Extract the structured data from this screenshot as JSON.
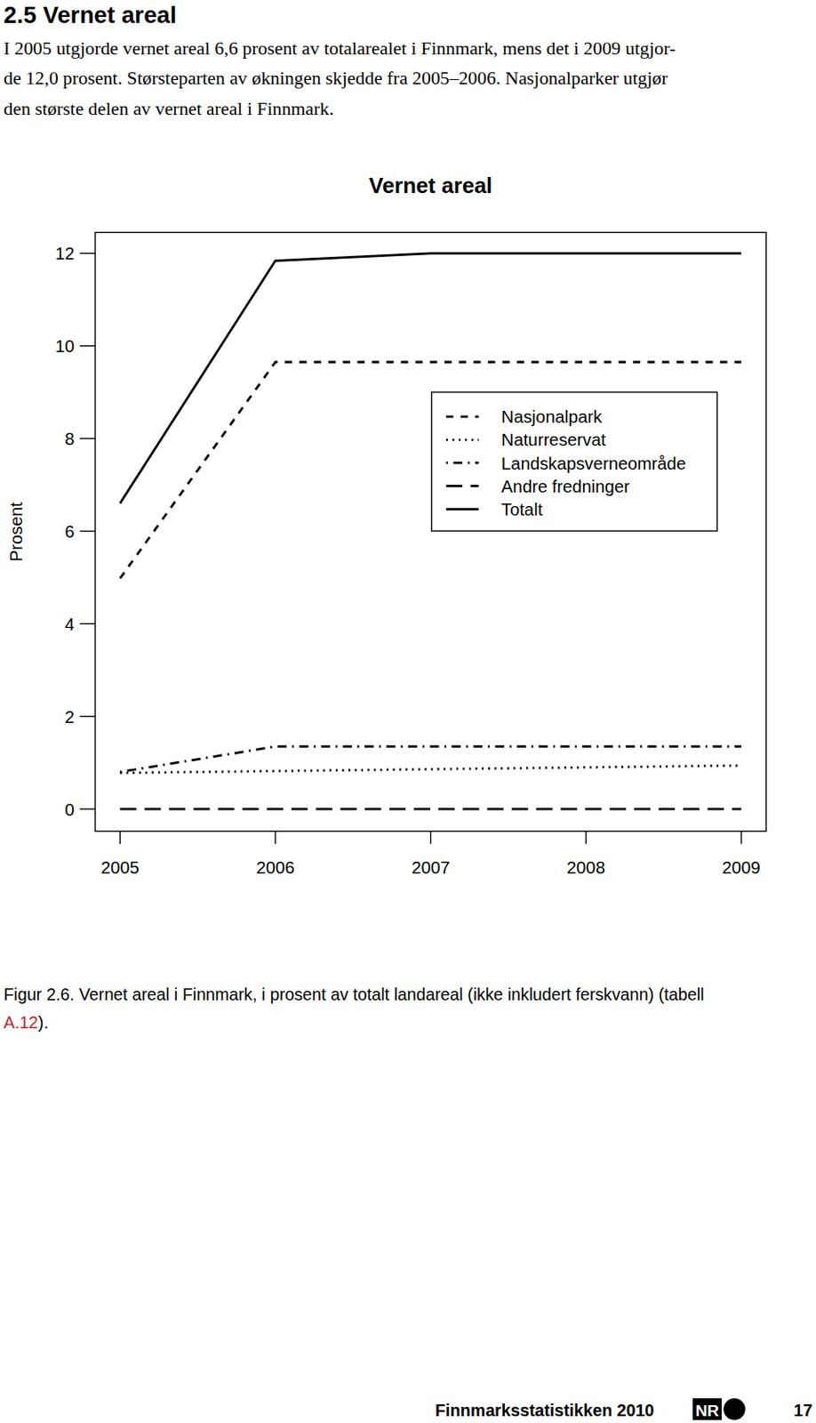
{
  "header": {
    "title": "2.5 Vernet areal"
  },
  "paragraph": {
    "lines": [
      "I 2005 utgjorde vernet areal 6,6 prosent av totalarealet i Finnmark, mens det i 2009 utgjor-",
      "de 12,0 prosent. Størsteparten av økningen skjedde fra 2005–2006. Nasjonalparker utgjør",
      "den største delen av vernet areal i Finnmark."
    ]
  },
  "chart_data": {
    "type": "line",
    "title": "Vernet areal",
    "y_label": "Prosent",
    "x": [
      2005,
      2006,
      2007,
      2008,
      2009
    ],
    "xlim": [
      2004.84,
      2009.16
    ],
    "xticks": [
      2005,
      2006,
      2007,
      2008,
      2009
    ],
    "ylim": [
      -0.48,
      12.45
    ],
    "yticks": [
      0,
      2,
      4,
      6,
      8,
      10,
      12
    ],
    "legend": "right",
    "series": [
      {
        "name": "Nasjonalpark",
        "color": "#000000",
        "line_style": "dashed",
        "values": [
          4.98,
          9.65,
          9.65,
          9.65,
          9.65
        ]
      },
      {
        "name": "Naturreservat",
        "color": "#000000",
        "line_style": "dotted",
        "values": [
          0.78,
          0.82,
          0.86,
          0.9,
          0.94
        ]
      },
      {
        "name": "Landskapsverneområde",
        "color": "#000000",
        "line_style": "dashdot",
        "values": [
          0.8,
          1.35,
          1.35,
          1.35,
          1.35
        ]
      },
      {
        "name": "Andre fredninger",
        "color": "#000000",
        "line_style": "longdash",
        "values": [
          0,
          0,
          0,
          0,
          0
        ]
      },
      {
        "name": "Totalt",
        "color": "#000000",
        "line_style": "solid",
        "values": [
          6.6,
          11.84,
          12.0,
          12.0,
          12.0
        ]
      }
    ]
  },
  "caption": {
    "text_1": "Figur 2.6. Vernet areal i Finnmark, i prosent av totalt landareal (ikke inkludert ferskvann) (tabell",
    "link": "A.12",
    "text_2": ")."
  },
  "footer": {
    "title": "Finnmarksstatistikken 2010",
    "logo": "NR",
    "page": "17"
  }
}
